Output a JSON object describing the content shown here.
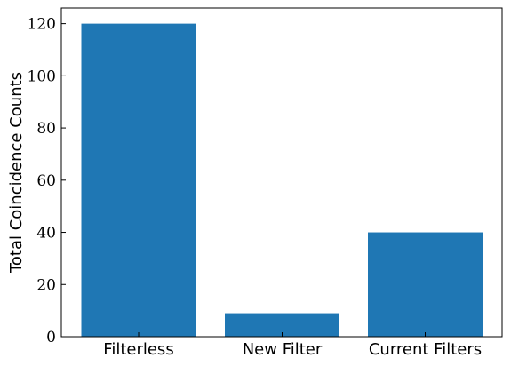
{
  "chart_data": {
    "type": "bar",
    "categories": [
      "Filterless",
      "New Filter",
      "Current Filters"
    ],
    "values": [
      120,
      9,
      40
    ],
    "title": "",
    "xlabel": "",
    "ylabel": "Total Coincidence Counts",
    "ylim": [
      0,
      126
    ],
    "yticks": [
      0,
      20,
      40,
      60,
      80,
      100,
      120
    ],
    "grid": false,
    "bar_color": "#1f77b4"
  }
}
